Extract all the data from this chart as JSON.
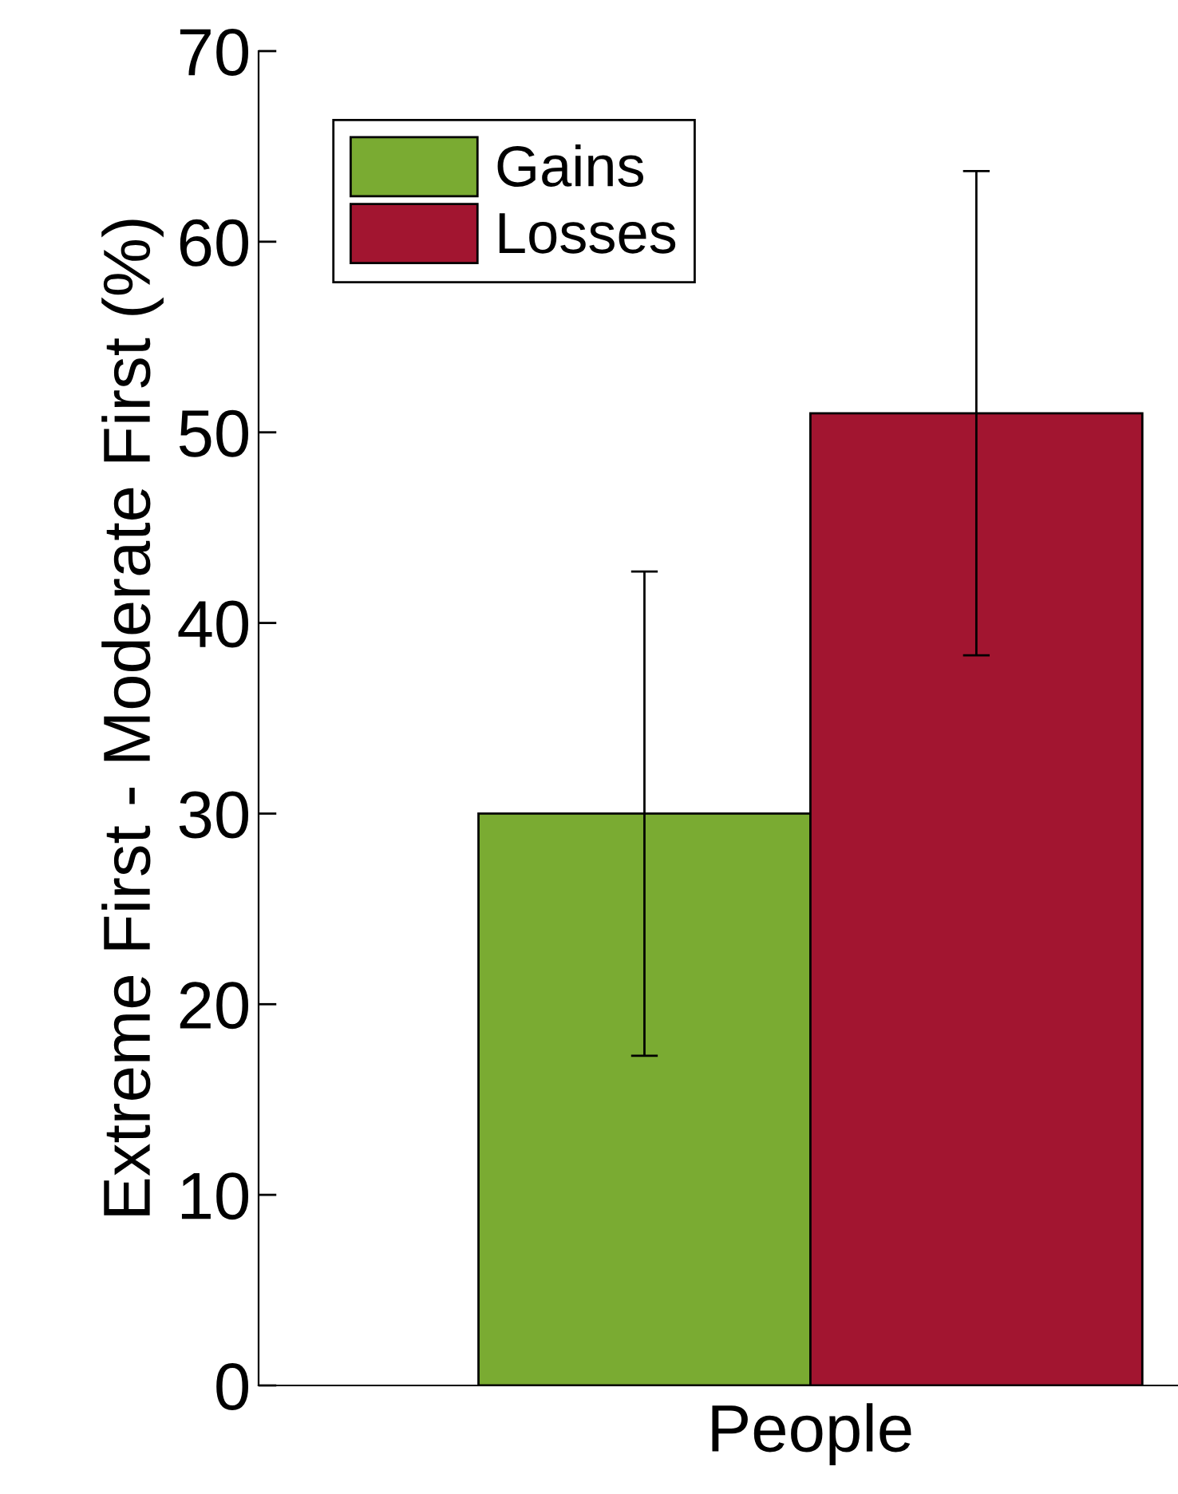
{
  "chart_data": {
    "type": "bar",
    "ylabel": "Extreme First - Moderate First (%)",
    "categories": [
      "People"
    ],
    "series": [
      {
        "name": "Gains",
        "color": "#7aab32",
        "values": [
          30
        ],
        "errors": [
          12.7
        ]
      },
      {
        "name": "Losses",
        "color": "#a21530",
        "values": [
          51
        ],
        "errors": [
          12.7
        ]
      }
    ],
    "ylim": [
      0,
      70
    ],
    "yticks": [
      0,
      10,
      20,
      30,
      40,
      50,
      60,
      70
    ],
    "legend": "top left",
    "grid": false
  }
}
